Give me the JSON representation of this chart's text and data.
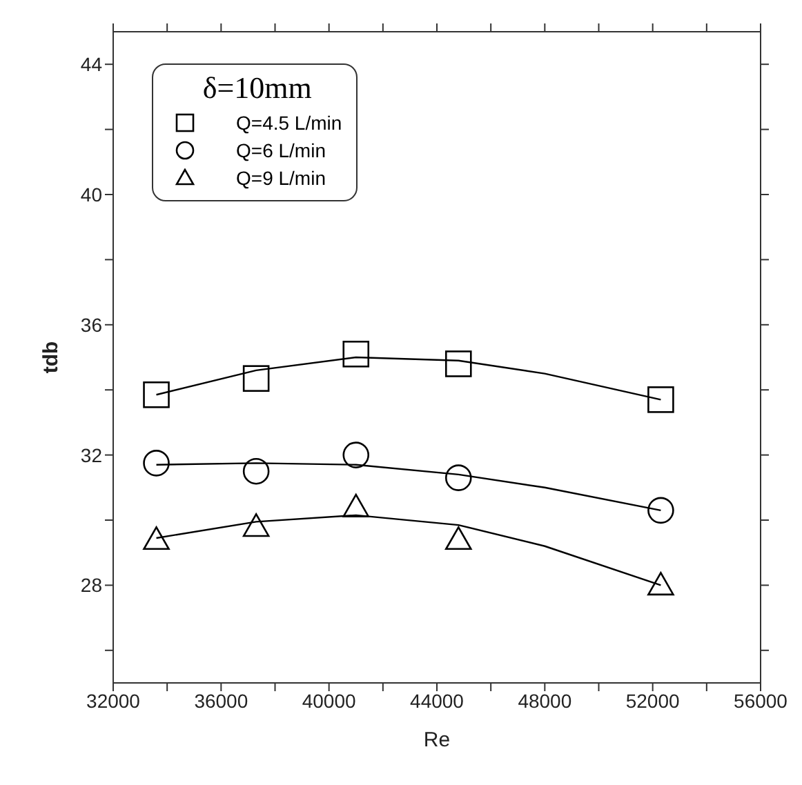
{
  "chart_data": {
    "type": "scatter",
    "xlabel": "Re",
    "ylabel": "tdb",
    "legend_title": "δ=10mm",
    "legend": "top left",
    "xlim": [
      32000,
      56000
    ],
    "xticks": [
      32000,
      {
        "value": 34000,
        "label": null
      },
      36000,
      {
        "value": 38000,
        "label": null
      },
      40000,
      {
        "value": 42000,
        "label": null
      },
      44000,
      {
        "value": 46000,
        "label": null
      },
      48000,
      {
        "value": 50000,
        "label": null
      },
      52000,
      {
        "value": 54000,
        "label": null
      },
      56000
    ],
    "ylim": [
      25,
      45
    ],
    "yticks": [
      {
        "value": 26,
        "label": null
      },
      28,
      {
        "value": 30,
        "label": null
      },
      32,
      {
        "value": 34,
        "label": null
      },
      36,
      {
        "value": 38,
        "label": null
      },
      40,
      {
        "value": 42,
        "label": null
      },
      44
    ],
    "x": [
      33600,
      37300,
      41000,
      44800,
      52300
    ],
    "series": [
      {
        "name": "Q=4.5 L/min",
        "color": "#000000",
        "marker": "square",
        "values": [
          33.85,
          34.35,
          35.1,
          34.8,
          33.7
        ]
      },
      {
        "name": "Q=6 L/min",
        "color": "#000000",
        "marker": "circle",
        "values": [
          31.75,
          31.5,
          32.0,
          31.3,
          30.3
        ]
      },
      {
        "name": "Q=9 L/min",
        "color": "#000000",
        "marker": "triangle",
        "values": [
          29.4,
          29.8,
          30.4,
          29.4,
          28.0
        ]
      },
      {
        "type": "line",
        "color": "#000000",
        "marker": "none",
        "x": [
          33600,
          37300,
          41000,
          44800,
          48000,
          52300
        ],
        "values": [
          33.85,
          34.6,
          35.0,
          34.9,
          34.5,
          33.7
        ]
      },
      {
        "type": "line",
        "color": "#000000",
        "marker": "none",
        "x": [
          33600,
          37300,
          41000,
          44800,
          48000,
          52300
        ],
        "values": [
          31.7,
          31.75,
          31.7,
          31.4,
          31.0,
          30.3
        ]
      },
      {
        "type": "line",
        "color": "#000000",
        "marker": "none",
        "x": [
          33600,
          37300,
          41000,
          44800,
          48000,
          52300
        ],
        "values": [
          29.45,
          29.95,
          30.15,
          29.85,
          29.2,
          28.0
        ]
      }
    ]
  }
}
